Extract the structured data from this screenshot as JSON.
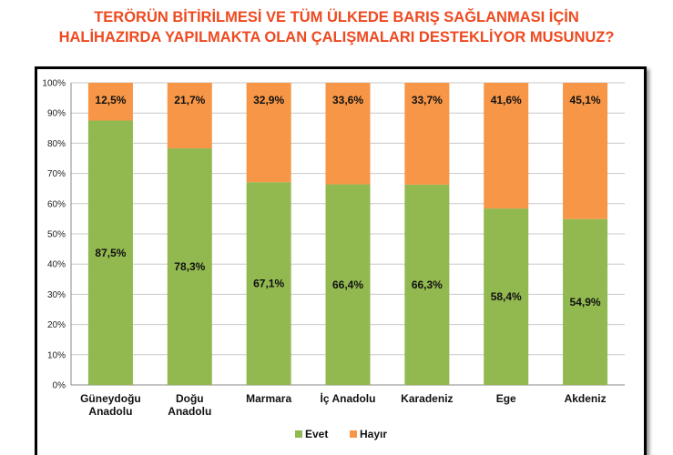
{
  "title": {
    "line1": "TERÖRÜN BİTİRİLMESİ VE TÜM ÜLKEDE BARIŞ SAĞLANMASI İÇİN",
    "line2": "HALİHAZIRDA YAPILMAKTA OLAN ÇALIŞMALARI DESTEKLİYOR MUSUNUZ?"
  },
  "chart_data": {
    "type": "bar",
    "stacked": true,
    "categories": [
      [
        "Güneydoğu",
        "Anadolu"
      ],
      [
        "Doğu",
        "Anadolu"
      ],
      [
        "Marmara"
      ],
      [
        "İç Anadolu"
      ],
      [
        "Karadeniz"
      ],
      [
        "Ege"
      ],
      [
        "Akdeniz"
      ]
    ],
    "series": [
      {
        "name": "Evet",
        "color": "#92b850",
        "values": [
          87.5,
          78.3,
          67.1,
          66.4,
          66.3,
          58.4,
          54.9
        ],
        "labels": [
          "87,5%",
          "78,3%",
          "67,1%",
          "66,4%",
          "66,3%",
          "58,4%",
          "54,9%"
        ]
      },
      {
        "name": "Hayır",
        "color": "#f79646",
        "values": [
          12.5,
          21.7,
          32.9,
          33.6,
          33.7,
          41.6,
          45.1
        ],
        "labels": [
          "12,5%",
          "21,7%",
          "32,9%",
          "33,6%",
          "33,7%",
          "41,6%",
          "45,1%"
        ]
      }
    ],
    "yticks": [
      "0%",
      "10%",
      "20%",
      "30%",
      "40%",
      "50%",
      "60%",
      "70%",
      "80%",
      "90%",
      "100%"
    ],
    "ylim": [
      0,
      100
    ],
    "grid": true,
    "legend_position": "bottom"
  }
}
